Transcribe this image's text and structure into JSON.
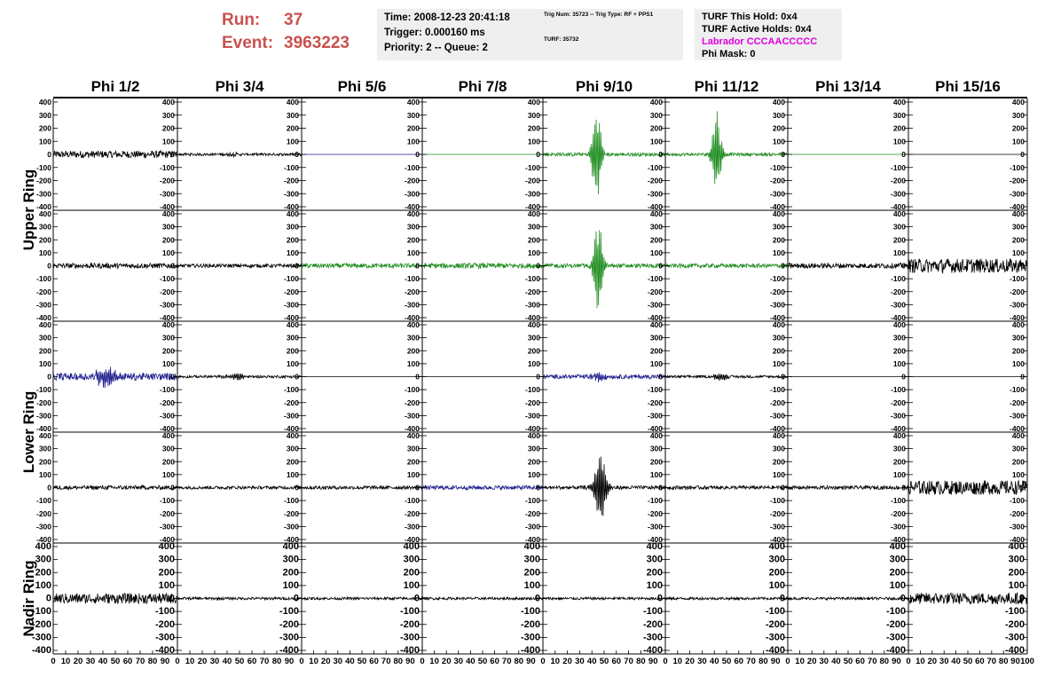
{
  "header": {
    "run_label": "Run:",
    "run_value": "37",
    "event_label": "Event:",
    "event_value": "3963223",
    "time": "Time: 2008-12-23 20:41:18",
    "trigger": "Trigger: 0.000160 ms",
    "priority": "Priority: 2 -- Queue: 2",
    "trig_num": "Trig Num: 35723 -- Trig Type: RF + PPS1",
    "turf": "TURF: 35732",
    "turf_this_hold": "TURF This Hold: 0x4",
    "turf_active_holds": "TURF Active Holds: 0x4",
    "labrador": "Labrador CCCAACCCCC",
    "phi_mask": "Phi Mask: 0"
  },
  "chart_data": {
    "type": "line",
    "columns": [
      "Phi 1/2",
      "Phi 3/4",
      "Phi 5/6",
      "Phi 7/8",
      "Phi 9/10",
      "Phi 11/12",
      "Phi 13/14",
      "Phi 15/16"
    ],
    "ring_labels": [
      "Upper Ring",
      "Lower Ring",
      "Nadir Ring"
    ],
    "ylim": [
      -400,
      400
    ],
    "y_ticks": [
      -400,
      -300,
      -200,
      -100,
      0,
      100,
      200,
      300,
      400
    ],
    "xlim": [
      0,
      100
    ],
    "x_tick_labels": [
      "0",
      "10",
      "20",
      "30",
      "40",
      "50",
      "60",
      "70",
      "80",
      "90",
      "100"
    ],
    "colors": {
      "black": "#000000",
      "green": "#1e8c1e",
      "blue": "#1c1c8c"
    },
    "panels": [
      [
        {
          "color": "black",
          "amp": 28,
          "pulse": 0,
          "center": 42,
          "width": 15,
          "flat": false
        },
        {
          "color": "black",
          "amp": 10,
          "pulse": 10,
          "center": 44,
          "width": 8,
          "flat": false
        },
        {
          "color": "blue",
          "amp": 0,
          "pulse": 0,
          "center": 0,
          "width": 0,
          "flat": true
        },
        {
          "color": "green",
          "amp": 0,
          "pulse": 0,
          "center": 0,
          "width": 0,
          "flat": true
        },
        {
          "color": "green",
          "amp": 14,
          "pulse": 370,
          "center": 44,
          "width": 4,
          "flat": false
        },
        {
          "color": "green",
          "amp": 12,
          "pulse": 340,
          "center": 42,
          "width": 4,
          "flat": false
        },
        {
          "color": "green",
          "amp": 0,
          "pulse": 0,
          "center": 0,
          "width": 0,
          "flat": true
        },
        {
          "color": "black",
          "amp": 0,
          "pulse": 0,
          "center": 0,
          "width": 0,
          "flat": true
        }
      ],
      [
        {
          "color": "black",
          "amp": 20,
          "pulse": 0,
          "center": 0,
          "width": 0,
          "flat": false
        },
        {
          "color": "black",
          "amp": 14,
          "pulse": 0,
          "center": 0,
          "width": 0,
          "flat": false
        },
        {
          "color": "green",
          "amp": 18,
          "pulse": 0,
          "center": 0,
          "width": 0,
          "flat": false
        },
        {
          "color": "green",
          "amp": 20,
          "pulse": 0,
          "center": 0,
          "width": 0,
          "flat": false
        },
        {
          "color": "green",
          "amp": 16,
          "pulse": 390,
          "center": 45,
          "width": 4,
          "flat": false
        },
        {
          "color": "green",
          "amp": 16,
          "pulse": 0,
          "center": 0,
          "width": 0,
          "flat": false
        },
        {
          "color": "black",
          "amp": 20,
          "pulse": 0,
          "center": 0,
          "width": 0,
          "flat": false
        },
        {
          "color": "black",
          "amp": 55,
          "pulse": 0,
          "center": 0,
          "width": 0,
          "flat": false
        }
      ],
      [
        {
          "color": "blue",
          "amp": 28,
          "pulse": 90,
          "center": 42,
          "width": 8,
          "flat": false
        },
        {
          "color": "black",
          "amp": 10,
          "pulse": 35,
          "center": 48,
          "width": 6,
          "flat": false
        },
        {
          "color": "black",
          "amp": 0,
          "pulse": 0,
          "center": 0,
          "width": 0,
          "flat": true
        },
        {
          "color": "black",
          "amp": 0,
          "pulse": 0,
          "center": 0,
          "width": 0,
          "flat": true
        },
        {
          "color": "blue",
          "amp": 16,
          "pulse": 40,
          "center": 46,
          "width": 6,
          "flat": false
        },
        {
          "color": "black",
          "amp": 10,
          "pulse": 40,
          "center": 45,
          "width": 5,
          "flat": false
        },
        {
          "color": "black",
          "amp": 0,
          "pulse": 0,
          "center": 0,
          "width": 0,
          "flat": true
        },
        {
          "color": "black",
          "amp": 0,
          "pulse": 0,
          "center": 0,
          "width": 0,
          "flat": true
        }
      ],
      [
        {
          "color": "black",
          "amp": 16,
          "pulse": 0,
          "center": 0,
          "width": 0,
          "flat": false
        },
        {
          "color": "black",
          "amp": 12,
          "pulse": 0,
          "center": 0,
          "width": 0,
          "flat": false
        },
        {
          "color": "black",
          "amp": 14,
          "pulse": 0,
          "center": 0,
          "width": 0,
          "flat": false
        },
        {
          "color": "blue",
          "amp": 16,
          "pulse": 0,
          "center": 0,
          "width": 0,
          "flat": false
        },
        {
          "color": "black",
          "amp": 14,
          "pulse": 290,
          "center": 47,
          "width": 5,
          "flat": false
        },
        {
          "color": "black",
          "amp": 14,
          "pulse": 0,
          "center": 0,
          "width": 0,
          "flat": false
        },
        {
          "color": "black",
          "amp": 14,
          "pulse": 0,
          "center": 0,
          "width": 0,
          "flat": false
        },
        {
          "color": "black",
          "amp": 55,
          "pulse": 0,
          "center": 0,
          "width": 0,
          "flat": false
        }
      ],
      [
        {
          "color": "black",
          "amp": 40,
          "pulse": 0,
          "center": 0,
          "width": 0,
          "flat": false
        },
        {
          "color": "black",
          "amp": 10,
          "pulse": 0,
          "center": 0,
          "width": 0,
          "flat": false
        },
        {
          "color": "black",
          "amp": 10,
          "pulse": 0,
          "center": 0,
          "width": 0,
          "flat": false
        },
        {
          "color": "black",
          "amp": 10,
          "pulse": 0,
          "center": 0,
          "width": 0,
          "flat": false
        },
        {
          "color": "black",
          "amp": 10,
          "pulse": 0,
          "center": 0,
          "width": 0,
          "flat": false
        },
        {
          "color": "black",
          "amp": 10,
          "pulse": 0,
          "center": 0,
          "width": 0,
          "flat": false
        },
        {
          "color": "black",
          "amp": 10,
          "pulse": 0,
          "center": 0,
          "width": 0,
          "flat": false
        },
        {
          "color": "black",
          "amp": 45,
          "pulse": 0,
          "center": 0,
          "width": 0,
          "flat": false
        }
      ]
    ]
  }
}
